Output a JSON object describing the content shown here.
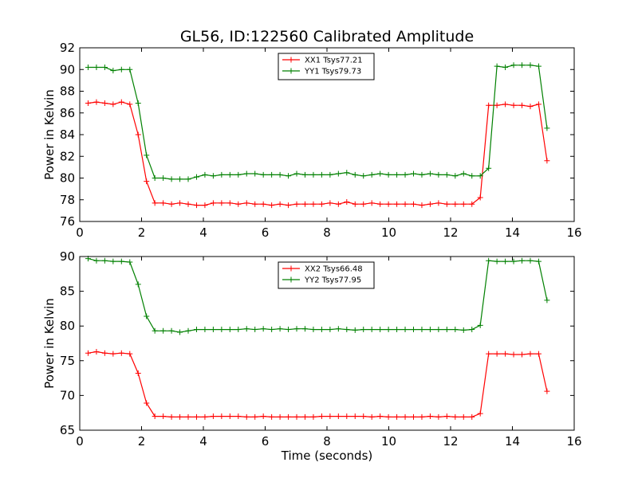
{
  "figure": {
    "title": "GL56, ID:122560 Calibrated Amplitude"
  },
  "chart_data": [
    {
      "type": "line",
      "xlabel": "",
      "ylabel": "Power in Kelvin",
      "xlim": [
        0,
        16
      ],
      "ylim": [
        76,
        92
      ],
      "xticks": [
        "0",
        "2",
        "4",
        "6",
        "8",
        "10",
        "12",
        "14",
        "16"
      ],
      "yticks": [
        "76",
        "78",
        "80",
        "82",
        "84",
        "86",
        "88",
        "90",
        "92"
      ],
      "grid": false,
      "legend_position": "top-center",
      "marker": "+",
      "x": [
        0.27,
        0.54,
        0.81,
        1.08,
        1.35,
        1.62,
        1.89,
        2.16,
        2.43,
        2.7,
        2.97,
        3.24,
        3.51,
        3.78,
        4.05,
        4.32,
        4.59,
        4.86,
        5.13,
        5.4,
        5.67,
        5.94,
        6.21,
        6.48,
        6.75,
        7.02,
        7.29,
        7.56,
        7.83,
        8.1,
        8.37,
        8.64,
        8.91,
        9.18,
        9.45,
        9.72,
        9.99,
        10.26,
        10.53,
        10.8,
        11.07,
        11.34,
        11.61,
        11.88,
        12.15,
        12.42,
        12.69,
        12.96,
        13.23,
        13.5,
        13.77,
        14.04,
        14.31,
        14.58,
        14.85,
        15.12
      ],
      "series": [
        {
          "name": "XX1 Tsys77.21",
          "color": "#ff0000",
          "values": [
            86.9,
            87.0,
            86.9,
            86.8,
            87.0,
            86.8,
            84.0,
            79.7,
            77.7,
            77.7,
            77.6,
            77.7,
            77.6,
            77.5,
            77.5,
            77.7,
            77.7,
            77.7,
            77.6,
            77.7,
            77.6,
            77.6,
            77.5,
            77.6,
            77.5,
            77.6,
            77.6,
            77.6,
            77.6,
            77.7,
            77.6,
            77.8,
            77.6,
            77.6,
            77.7,
            77.6,
            77.6,
            77.6,
            77.6,
            77.6,
            77.5,
            77.6,
            77.7,
            77.6,
            77.6,
            77.6,
            77.6,
            78.2,
            86.7,
            86.7,
            86.8,
            86.7,
            86.7,
            86.6,
            86.8,
            81.6
          ]
        },
        {
          "name": "YY1 Tsys79.73",
          "color": "#008000",
          "values": [
            90.2,
            90.2,
            90.2,
            89.9,
            90.0,
            90.0,
            86.9,
            82.1,
            80.0,
            80.0,
            79.9,
            79.9,
            79.9,
            80.1,
            80.3,
            80.2,
            80.3,
            80.3,
            80.3,
            80.4,
            80.4,
            80.3,
            80.3,
            80.3,
            80.2,
            80.4,
            80.3,
            80.3,
            80.3,
            80.3,
            80.4,
            80.5,
            80.3,
            80.2,
            80.3,
            80.4,
            80.3,
            80.3,
            80.3,
            80.4,
            80.3,
            80.4,
            80.3,
            80.3,
            80.2,
            80.4,
            80.2,
            80.2,
            80.9,
            90.3,
            90.2,
            90.4,
            90.4,
            90.4,
            90.3,
            84.6
          ]
        }
      ]
    },
    {
      "type": "line",
      "xlabel": "Time (seconds)",
      "ylabel": "Power in Kelvin",
      "xlim": [
        0,
        16
      ],
      "ylim": [
        65,
        90
      ],
      "xticks": [
        "0",
        "2",
        "4",
        "6",
        "8",
        "10",
        "12",
        "14",
        "16"
      ],
      "yticks": [
        "65",
        "70",
        "75",
        "80",
        "85",
        "90"
      ],
      "grid": false,
      "legend_position": "top-center",
      "marker": "+",
      "x": [
        0.27,
        0.54,
        0.81,
        1.08,
        1.35,
        1.62,
        1.89,
        2.16,
        2.43,
        2.7,
        2.97,
        3.24,
        3.51,
        3.78,
        4.05,
        4.32,
        4.59,
        4.86,
        5.13,
        5.4,
        5.67,
        5.94,
        6.21,
        6.48,
        6.75,
        7.02,
        7.29,
        7.56,
        7.83,
        8.1,
        8.37,
        8.64,
        8.91,
        9.18,
        9.45,
        9.72,
        9.99,
        10.26,
        10.53,
        10.8,
        11.07,
        11.34,
        11.61,
        11.88,
        12.15,
        12.42,
        12.69,
        12.96,
        13.23,
        13.5,
        13.77,
        14.04,
        14.31,
        14.58,
        14.85,
        15.12
      ],
      "series": [
        {
          "name": "XX2 Tsys66.48",
          "color": "#ff0000",
          "values": [
            76.1,
            76.3,
            76.1,
            76.0,
            76.1,
            76.0,
            73.2,
            68.9,
            67.0,
            67.0,
            66.9,
            66.9,
            66.9,
            66.9,
            66.9,
            67.0,
            67.0,
            67.0,
            67.0,
            66.9,
            66.9,
            67.0,
            66.9,
            66.9,
            66.9,
            66.9,
            66.9,
            66.9,
            67.0,
            67.0,
            67.0,
            67.0,
            67.0,
            67.0,
            66.9,
            67.0,
            66.9,
            66.9,
            66.9,
            66.9,
            66.9,
            67.0,
            66.9,
            67.0,
            66.9,
            66.9,
            66.9,
            67.4,
            76.0,
            76.0,
            76.0,
            75.9,
            75.9,
            76.0,
            76.0,
            70.6
          ]
        },
        {
          "name": "YY2 Tsys77.95",
          "color": "#008000",
          "values": [
            89.7,
            89.4,
            89.4,
            89.3,
            89.3,
            89.2,
            86.0,
            81.4,
            79.3,
            79.3,
            79.3,
            79.1,
            79.3,
            79.5,
            79.5,
            79.5,
            79.5,
            79.5,
            79.5,
            79.6,
            79.5,
            79.6,
            79.5,
            79.6,
            79.5,
            79.6,
            79.6,
            79.5,
            79.5,
            79.5,
            79.6,
            79.5,
            79.4,
            79.5,
            79.5,
            79.5,
            79.5,
            79.5,
            79.5,
            79.5,
            79.5,
            79.5,
            79.5,
            79.5,
            79.5,
            79.4,
            79.5,
            80.1,
            89.4,
            89.3,
            89.3,
            89.3,
            89.4,
            89.4,
            89.3,
            83.7
          ]
        }
      ]
    }
  ]
}
